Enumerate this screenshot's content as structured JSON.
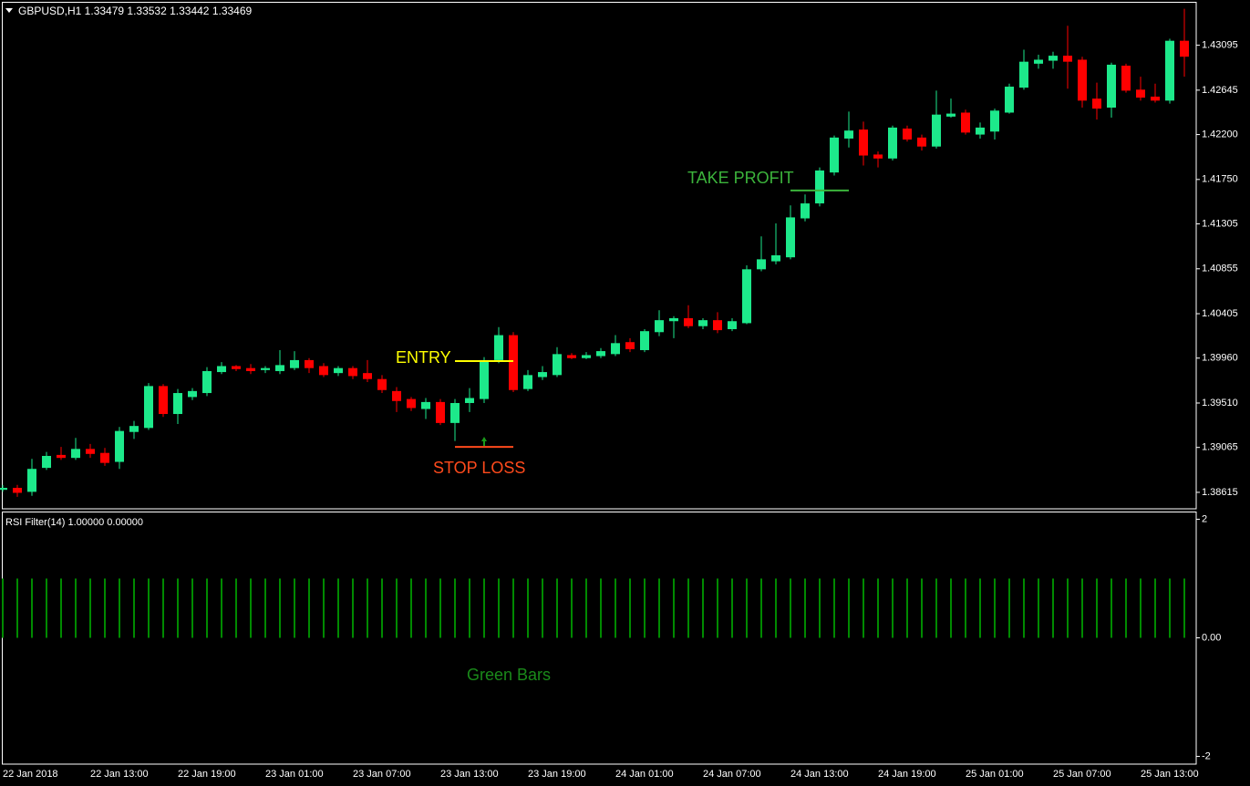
{
  "chart_data": [
    {
      "type": "candlestick",
      "title": "GBPUSD,H1  1.33479 1.33532 1.33442 1.33469",
      "categories": [
        "22 Jan 2018",
        null,
        null,
        null,
        null,
        null,
        "22 Jan 13:00",
        null,
        null,
        null,
        null,
        null,
        "22 Jan 19:00",
        null,
        null,
        null,
        null,
        null,
        "23 Jan 01:00",
        null,
        null,
        null,
        null,
        null,
        "23 Jan 07:00",
        null,
        null,
        null,
        null,
        null,
        "23 Jan 13:00",
        null,
        null,
        null,
        null,
        null,
        "23 Jan 19:00",
        null,
        null,
        null,
        null,
        null,
        "24 Jan 01:00",
        null,
        null,
        null,
        null,
        null,
        "24 Jan 07:00",
        null,
        null,
        null,
        null,
        null,
        "24 Jan 13:00",
        null,
        null,
        null,
        null,
        null,
        "24 Jan 19:00",
        null,
        null,
        null,
        null,
        null,
        "25 Jan 01:00",
        null,
        null,
        null,
        null,
        null,
        "25 Jan 07:00",
        null,
        null,
        null,
        null,
        null,
        "25 Jan 13:00",
        null,
        null,
        null
      ],
      "open": [
        1.3864,
        1.3866,
        1.3862,
        1.3886,
        1.3899,
        1.3896,
        1.3905,
        1.3901,
        1.3892,
        1.3922,
        1.3926,
        1.3968,
        1.394,
        1.3957,
        1.3961,
        1.3982,
        1.3988,
        1.3986,
        1.3984,
        1.3983,
        1.3986,
        1.3994,
        1.3988,
        1.3981,
        1.3986,
        1.3981,
        1.3975,
        1.3963,
        1.3955,
        1.3945,
        1.3952,
        1.3931,
        1.3951,
        1.3955,
        1.3994,
        1.4019,
        1.3965,
        1.3977,
        1.3979,
        1.3999,
        1.3996,
        1.3998,
        1.4,
        1.4012,
        1.4004,
        1.4022,
        1.4033,
        1.4036,
        1.4028,
        1.4034,
        1.4025,
        1.4031,
        1.4085,
        1.4093,
        1.4097,
        1.4136,
        1.4151,
        1.4182,
        1.4216,
        1.4225,
        1.42,
        1.4196,
        1.4226,
        1.4217,
        1.4208,
        1.4238,
        1.4242,
        1.422,
        1.4223,
        1.4242,
        1.4267,
        1.4291,
        1.4294,
        1.4299,
        1.4295,
        1.4256,
        1.4247,
        1.4289,
        1.4265,
        1.4258,
        1.4254,
        1.4314
      ],
      "high": [
        1.3869,
        1.3869,
        1.3895,
        1.3902,
        1.3907,
        1.3916,
        1.391,
        1.3906,
        1.3927,
        1.3933,
        1.3971,
        1.397,
        1.3965,
        1.3966,
        1.3987,
        1.3992,
        1.3989,
        1.399,
        1.3988,
        1.4004,
        1.4003,
        1.3996,
        1.3991,
        1.3988,
        1.3988,
        1.3994,
        1.3979,
        1.3967,
        1.3957,
        1.3956,
        1.3955,
        1.3955,
        1.3966,
        1.3997,
        1.4027,
        1.4022,
        1.3984,
        1.3988,
        1.4007,
        1.4001,
        1.4002,
        1.4006,
        1.4019,
        1.4016,
        1.4025,
        1.4044,
        1.4038,
        1.4049,
        1.4036,
        1.4042,
        1.4036,
        1.4089,
        1.4118,
        1.4131,
        1.4149,
        1.416,
        1.4187,
        1.4219,
        1.4243,
        1.4233,
        1.4203,
        1.4229,
        1.4229,
        1.422,
        1.4264,
        1.4256,
        1.4245,
        1.4232,
        1.4246,
        1.4271,
        1.4305,
        1.43,
        1.4303,
        1.4329,
        1.4298,
        1.4272,
        1.4292,
        1.4291,
        1.4278,
        1.4271,
        1.4316,
        1.4346
      ],
      "low": [
        1.3862,
        1.3857,
        1.3858,
        1.3884,
        1.3894,
        1.3894,
        1.3896,
        1.3888,
        1.3885,
        1.3915,
        1.3924,
        1.3937,
        1.393,
        1.3954,
        1.3958,
        1.398,
        1.3983,
        1.398,
        1.3981,
        1.398,
        1.3984,
        1.3981,
        1.3977,
        1.3978,
        1.3975,
        1.3972,
        1.3961,
        1.3942,
        1.3943,
        1.3935,
        1.3929,
        1.3913,
        1.3942,
        1.3951,
        1.3991,
        1.3962,
        1.3963,
        1.3974,
        1.3977,
        1.3995,
        1.3995,
        1.3996,
        1.3998,
        1.4002,
        1.4002,
        1.4018,
        1.4016,
        1.4026,
        1.4025,
        1.4021,
        1.4023,
        1.403,
        1.4083,
        1.409,
        1.4095,
        1.4133,
        1.4148,
        1.4179,
        1.4207,
        1.4189,
        1.4187,
        1.4194,
        1.4213,
        1.4204,
        1.4206,
        1.4237,
        1.422,
        1.4216,
        1.4215,
        1.4241,
        1.4265,
        1.4286,
        1.4286,
        1.4266,
        1.4247,
        1.4235,
        1.4237,
        1.4262,
        1.4254,
        1.4252,
        1.4251,
        1.4278
      ],
      "close": [
        1.3866,
        1.3861,
        1.3885,
        1.3898,
        1.3896,
        1.3905,
        1.39,
        1.3891,
        1.3923,
        1.3928,
        1.3968,
        1.394,
        1.3961,
        1.3963,
        1.3983,
        1.3988,
        1.3985,
        1.3983,
        1.3986,
        1.3989,
        1.3994,
        1.3986,
        1.3979,
        1.3986,
        1.3978,
        1.3975,
        1.3964,
        1.3953,
        1.3946,
        1.3952,
        1.3931,
        1.3951,
        1.3956,
        1.3994,
        1.4019,
        1.3964,
        1.3979,
        1.3982,
        1.4,
        1.3996,
        1.3999,
        1.4003,
        1.4011,
        1.4005,
        1.4023,
        1.4034,
        1.4036,
        1.4028,
        1.4034,
        1.4024,
        1.4033,
        1.4085,
        1.4095,
        1.4099,
        1.4137,
        1.4151,
        1.4184,
        1.4217,
        1.4224,
        1.4199,
        1.4196,
        1.4227,
        1.4215,
        1.4208,
        1.424,
        1.4241,
        1.4222,
        1.4227,
        1.4244,
        1.4268,
        1.4293,
        1.4295,
        1.4299,
        1.4293,
        1.4254,
        1.4246,
        1.429,
        1.4264,
        1.4257,
        1.4254,
        1.4314,
        1.4298
      ],
      "up_color": "#1de98b",
      "down_color": "#ff0000",
      "ylim": [
        1.3845,
        1.4353
      ],
      "yticks": [
        1.43095,
        1.42645,
        {
          "value": 1.422,
          "label": "1.42200"
        },
        {
          "value": 1.4175,
          "label": "1.41750"
        },
        1.41305,
        1.40855,
        1.40405,
        {
          "value": 1.3996,
          "label": "1.39960"
        },
        {
          "value": 1.3951,
          "label": "1.39510"
        },
        1.39065,
        1.38615
      ],
      "annotations": [
        {
          "text": "ENTRY",
          "level": 1.3993,
          "color": "#ffff00"
        },
        {
          "text": "STOP LOSS",
          "level": 1.3907,
          "color": "#ff4a1c"
        },
        {
          "text": "TAKE PROFIT",
          "level": 1.4164,
          "color": "#3cb43c"
        }
      ]
    },
    {
      "type": "bar",
      "title": "RSI Filter(14) 1.00000 0.00000",
      "values": [
        1,
        1,
        1,
        1,
        1,
        1,
        1,
        1,
        1,
        1,
        1,
        1,
        1,
        1,
        1,
        1,
        1,
        1,
        1,
        1,
        1,
        1,
        1,
        1,
        1,
        1,
        1,
        1,
        1,
        1,
        1,
        1,
        1,
        1,
        1,
        1,
        1,
        1,
        1,
        1,
        1,
        1,
        1,
        1,
        1,
        1,
        1,
        1,
        1,
        1,
        1,
        1,
        1,
        1,
        1,
        1,
        1,
        1,
        1,
        1,
        1,
        1,
        1,
        1,
        1,
        1,
        1,
        1,
        1,
        1,
        1,
        1,
        1,
        1,
        1,
        1,
        1,
        1,
        1,
        1,
        1,
        1
      ],
      "color": "#008a00",
      "ylim": [
        -2.13,
        2.13
      ],
      "yticks": [
        2,
        {
          "value": 0,
          "label": "0.00"
        },
        -2
      ],
      "annotations": [
        {
          "text": "Green Bars",
          "color": "#1a8a1a"
        }
      ]
    }
  ]
}
